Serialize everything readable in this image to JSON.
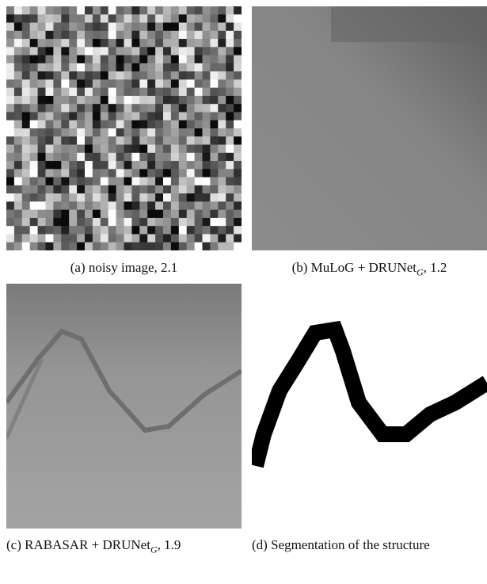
{
  "captions": [
    {
      "text": "(a) noisy image, 2.1"
    },
    {
      "before": "(b) MuLoG + DRUNet",
      "sub": "G",
      "after": ", 1.2"
    },
    {
      "before": "(c) RABASAR + DRUNet",
      "sub": "G",
      "after": ", 1.9"
    },
    {
      "text": "(d) Segmentation of the structure"
    }
  ]
}
